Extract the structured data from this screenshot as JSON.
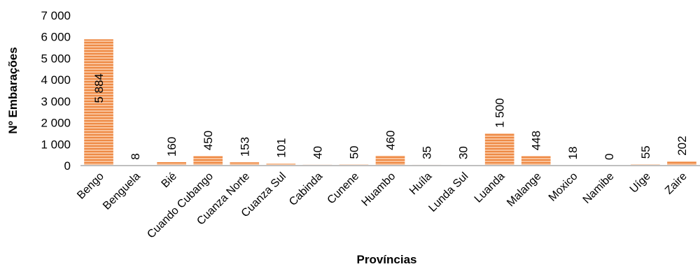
{
  "chart_data": {
    "type": "bar",
    "title": "",
    "xlabel": "Províncias",
    "ylabel": "Nº Embarações",
    "categories": [
      "Bengo",
      "Benguela",
      "Bié",
      "Cuando Cubango",
      "Cuanza Norte",
      "Cuanza Sul",
      "Cabinda",
      "Cunene",
      "Huambo",
      "Huíla",
      "Lunda Sul",
      "Luanda",
      "Malange",
      "Moxico",
      "Namibe",
      "Uíge",
      "Zaire"
    ],
    "values": [
      5884,
      8,
      160,
      450,
      153,
      101,
      40,
      50,
      460,
      35,
      30,
      1500,
      448,
      18,
      0,
      55,
      202
    ],
    "value_labels": [
      "5 884",
      "8",
      "160",
      "450",
      "153",
      "101",
      "40",
      "50",
      "460",
      "35",
      "30",
      "1 500",
      "448",
      "18",
      "0",
      "55",
      "202"
    ],
    "ylim": [
      0,
      7000
    ],
    "yticks": [
      0,
      1000,
      2000,
      3000,
      4000,
      5000,
      6000,
      7000
    ],
    "ytick_labels": [
      "0",
      "1 000",
      "2 000",
      "3 000",
      "4 000",
      "5 000",
      "6 000",
      "7 000"
    ],
    "grid": false,
    "legend": "none",
    "colors": {
      "bar": "#F4A672",
      "bar_stripe": "#E8741C",
      "axis": "#BFBFBF"
    }
  }
}
